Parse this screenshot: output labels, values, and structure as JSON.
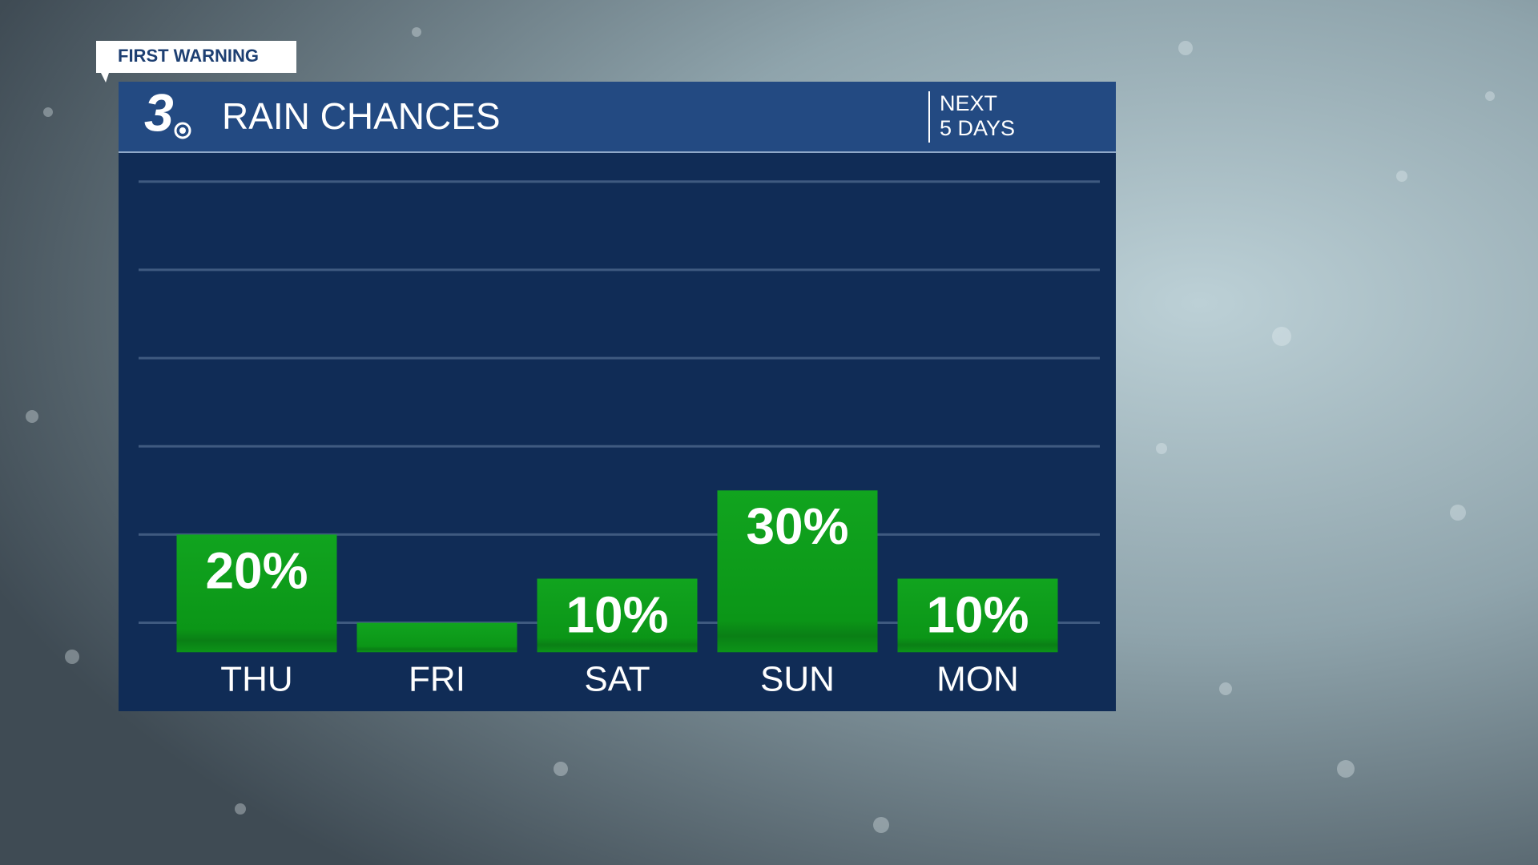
{
  "badge": "FIRST WARNING",
  "logo": "3",
  "chart_data": {
    "type": "bar",
    "title": "RAIN CHANCES",
    "subtitle": [
      "NEXT",
      "5 DAYS"
    ],
    "categories": [
      "THU",
      "FRI",
      "SAT",
      "SUN",
      "MON"
    ],
    "values": [
      20,
      0,
      10,
      30,
      10
    ],
    "value_labels": [
      "20%",
      null,
      "10%",
      "30%",
      "10%"
    ],
    "color": "#0d9c1a",
    "ylim": [
      -6.67,
      106.67
    ],
    "yticks": [
      0,
      20,
      40,
      60,
      80,
      100
    ],
    "grid": true
  }
}
